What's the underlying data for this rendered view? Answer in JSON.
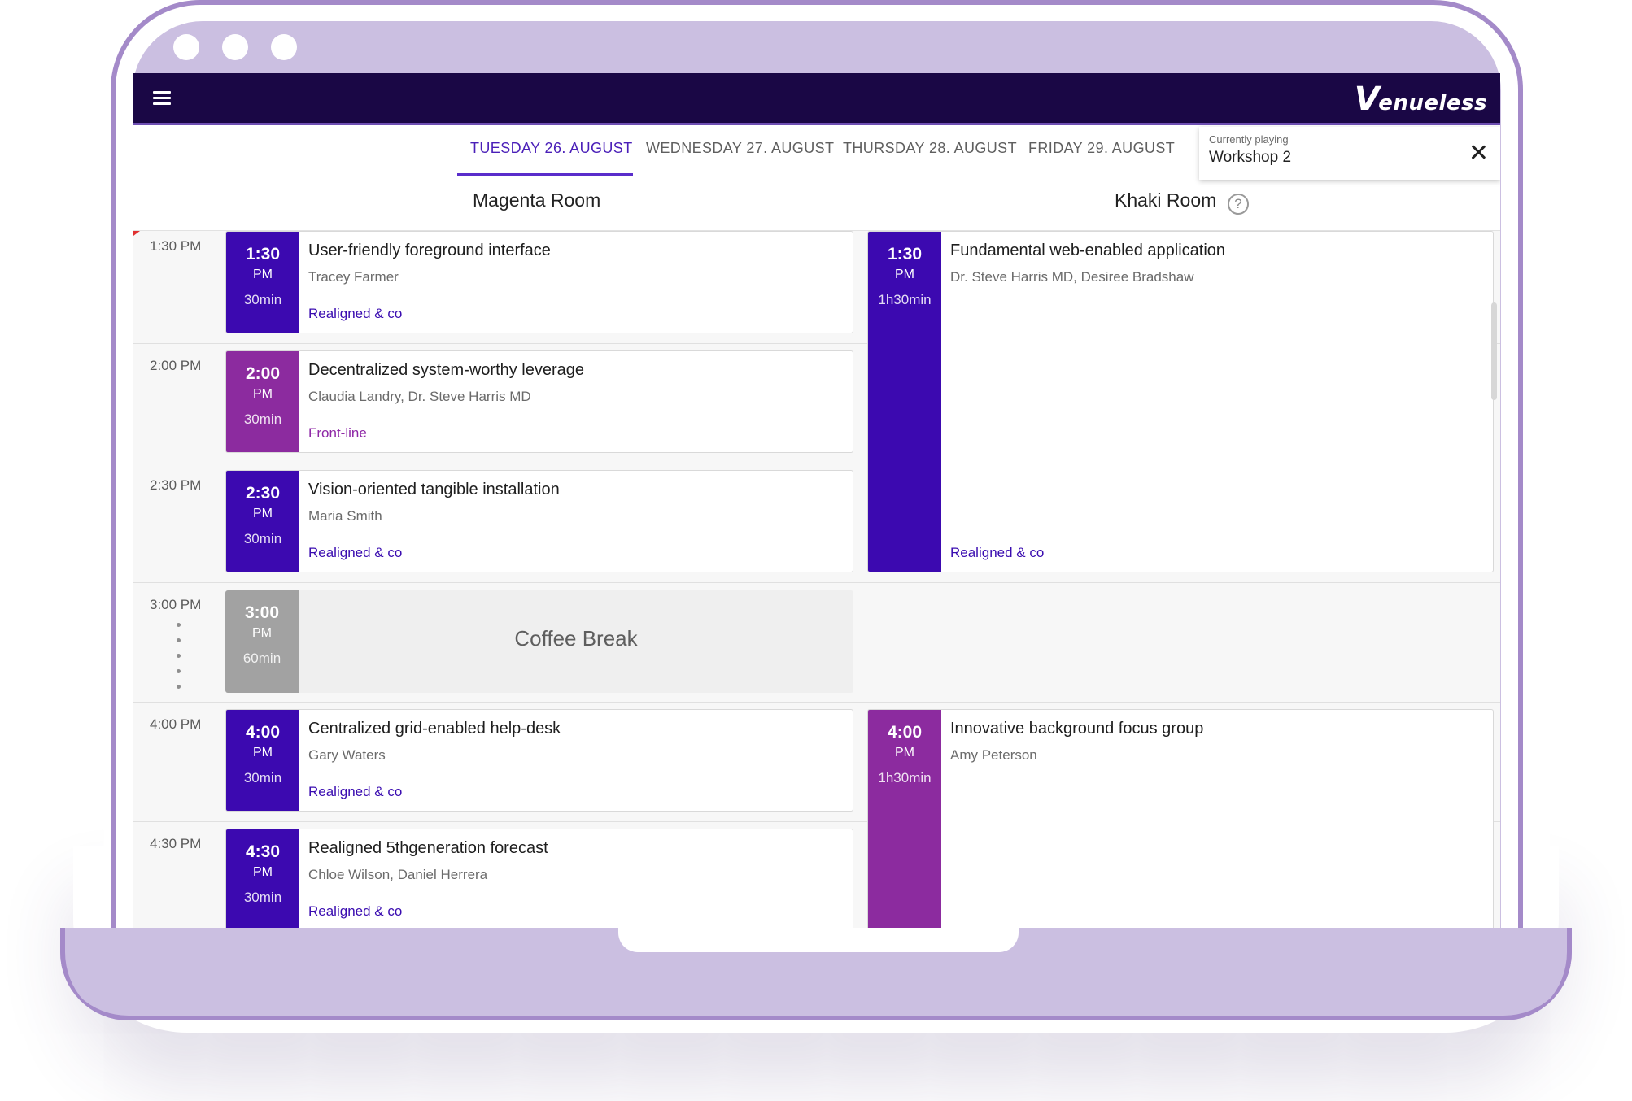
{
  "app": {
    "logo_initial": "V",
    "logo_rest": "enueless"
  },
  "days": [
    {
      "label": "TUESDAY 26. AUGUST",
      "active": true
    },
    {
      "label": "WEDNESDAY 27. AUGUST",
      "active": false
    },
    {
      "label": "THURSDAY 28. AUGUST",
      "active": false
    },
    {
      "label": "FRIDAY 29. AUGUST",
      "active": false
    }
  ],
  "now_playing": {
    "label": "Currently playing",
    "title": "Workshop 2"
  },
  "rooms": [
    "Magenta Room",
    "Khaki Room"
  ],
  "help_icon_glyph": "?",
  "times": [
    "1:30 PM",
    "2:00 PM",
    "2:30 PM",
    "3:00 PM",
    "4:00 PM",
    "4:30 PM"
  ],
  "colors": {
    "indigo": "#3c09b0",
    "magenta": "#8c2b9f",
    "break": "#a2a2a2",
    "track_realigned": "#3a0cb0",
    "track_frontline": "#8e28a6"
  },
  "sessions": {
    "magenta": [
      {
        "time": "1:30",
        "ampm": "PM",
        "duration": "30min",
        "title": "User-friendly foreground interface",
        "speakers": "Tracey Farmer",
        "track": "Realigned & co",
        "color": "indigo"
      },
      {
        "time": "2:00",
        "ampm": "PM",
        "duration": "30min",
        "title": "Decentralized system-worthy leverage",
        "speakers": "Claudia Landry, Dr. Steve Harris MD",
        "track": "Front-line",
        "color": "magenta"
      },
      {
        "time": "2:30",
        "ampm": "PM",
        "duration": "30min",
        "title": "Vision-oriented tangible installation",
        "speakers": "Maria Smith",
        "track": "Realigned & co",
        "color": "indigo"
      },
      {
        "time": "3:00",
        "ampm": "PM",
        "duration": "60min",
        "title": "Coffee Break",
        "color": "break"
      },
      {
        "time": "4:00",
        "ampm": "PM",
        "duration": "30min",
        "title": "Centralized grid-enabled help-desk",
        "speakers": "Gary Waters",
        "track": "Realigned & co",
        "color": "indigo"
      },
      {
        "time": "4:30",
        "ampm": "PM",
        "duration": "30min",
        "title": "Realigned 5thgeneration forecast",
        "speakers": "Chloe Wilson, Daniel Herrera",
        "track": "Realigned & co",
        "color": "indigo"
      }
    ],
    "khaki": [
      {
        "time": "1:30",
        "ampm": "PM",
        "duration": "1h30min",
        "title": "Fundamental web-enabled application",
        "speakers": "Dr. Steve Harris MD, Desiree Bradshaw",
        "track": "Realigned & co",
        "color": "indigo"
      },
      {
        "time": "4:00",
        "ampm": "PM",
        "duration": "1h30min",
        "title": "Innovative background focus group",
        "speakers": "Amy Peterson",
        "color": "magenta"
      }
    ]
  }
}
